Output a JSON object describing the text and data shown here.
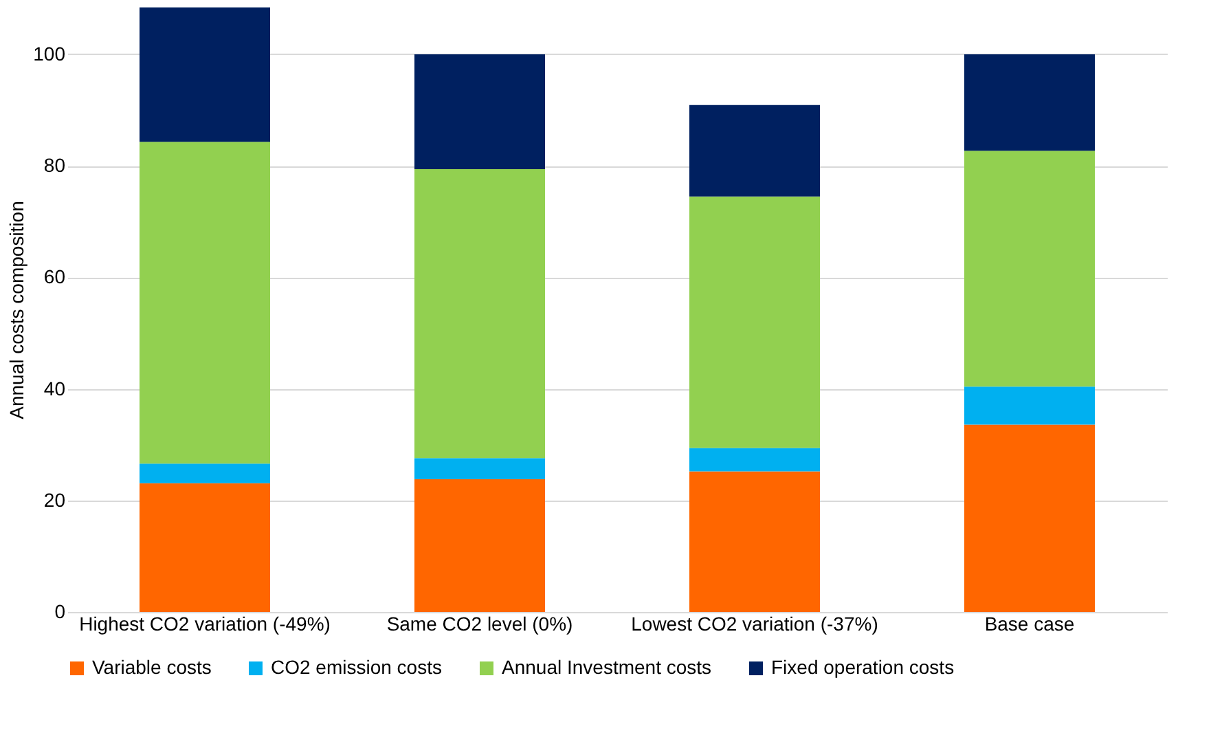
{
  "chart_data": {
    "type": "bar",
    "stacked": true,
    "ylabel": "Annual costs composition",
    "categories": [
      "Highest CO2 variation (-49%)",
      "Same CO2 level (0%)",
      "Lowest CO2 variation (-37%)",
      "Base case"
    ],
    "series": [
      {
        "name": "Variable costs",
        "color": "#ff6600",
        "values": [
          23.1,
          23.8,
          25.2,
          33.6
        ]
      },
      {
        "name": "CO2 emission costs",
        "color": "#00b0f0",
        "values": [
          3.5,
          3.8,
          4.2,
          6.8
        ]
      },
      {
        "name": "Annual Investment costs",
        "color": "#92d050",
        "values": [
          57.7,
          51.8,
          45.1,
          42.3
        ]
      },
      {
        "name": "Fixed operation costs",
        "color": "#002060",
        "values": [
          24.1,
          20.6,
          16.4,
          17.3
        ]
      }
    ],
    "ylim": [
      0,
      108.5
    ],
    "yticks": [
      0,
      20,
      40,
      60,
      80,
      100
    ],
    "grid": "y",
    "legend": "bottom"
  }
}
